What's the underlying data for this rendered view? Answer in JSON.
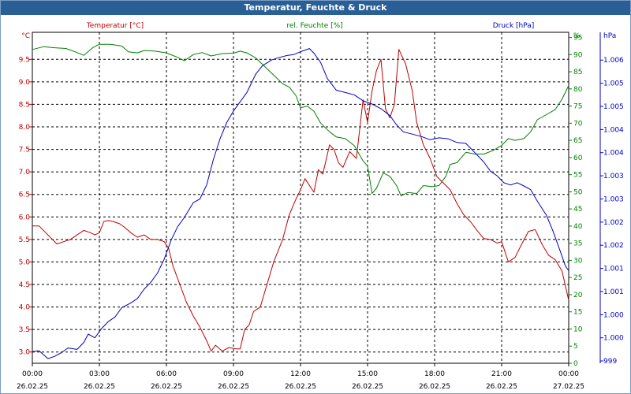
{
  "window": {
    "title": "Temperatur, Feuchte & Druck"
  },
  "colors": {
    "temperature": "#c00000",
    "humidity": "#008000",
    "pressure": "#0000c0",
    "title_bg": "#2a5f96",
    "grid": "#000000"
  },
  "chart_data": {
    "type": "line",
    "title": "Temperatur, Feuchte & Druck",
    "grid": true,
    "x_ticks": [
      {
        "hours": 0,
        "time": "00:00",
        "date": "26.02.25"
      },
      {
        "hours": 3,
        "time": "03:00",
        "date": "26.02.25"
      },
      {
        "hours": 6,
        "time": "06:00",
        "date": "26.02.25"
      },
      {
        "hours": 9,
        "time": "09:00",
        "date": "26.02.25"
      },
      {
        "hours": 12,
        "time": "12:00",
        "date": "26.02.25"
      },
      {
        "hours": 15,
        "time": "15:00",
        "date": "26.02.25"
      },
      {
        "hours": 18,
        "time": "18:00",
        "date": "26.02.25"
      },
      {
        "hours": 21,
        "time": "21:00",
        "date": "26.02.25"
      },
      {
        "hours": 24,
        "time": "00:00",
        "date": "27.02.25"
      }
    ],
    "x_range_hours": [
      0,
      24
    ],
    "axes": {
      "temperature": {
        "label": "Temperatur [°C]",
        "unit": "°C",
        "range": [
          2.75,
          10.1
        ],
        "ticks": [
          3.0,
          3.5,
          4.0,
          4.5,
          5.0,
          5.5,
          6.0,
          6.5,
          7.0,
          7.5,
          8.0,
          8.5,
          9.0,
          9.5
        ],
        "tick_labels": [
          "3.0",
          "3.5",
          "4.0",
          "4.5",
          "5.0",
          "5.5",
          "6.0",
          "6.5",
          "7.0",
          "7.5",
          "8.0",
          "8.5",
          "9.0",
          "9.5"
        ]
      },
      "humidity": {
        "label": "rel. Feuchte [%]",
        "unit": "%",
        "range": [
          0,
          96.5
        ],
        "ticks": [
          0,
          5,
          10,
          15,
          20,
          25,
          30,
          35,
          40,
          45,
          50,
          55,
          60,
          65,
          70,
          75,
          80,
          85,
          90,
          95
        ],
        "tick_labels": [
          "0",
          "5",
          "10",
          "15",
          "20",
          "25",
          "30",
          "35",
          "40",
          "45",
          "50",
          "55",
          "60",
          "65",
          "70",
          "75",
          "80",
          "85",
          "90",
          "95"
        ]
      },
      "pressure": {
        "label": "Druck [hPa]",
        "unit": "hPa",
        "range": [
          998.95,
          1006.1
        ],
        "ticks": [
          999.0,
          999.5,
          1000.0,
          1000.5,
          1001.0,
          1001.5,
          1002.0,
          1002.5,
          1003.0,
          1003.5,
          1004.0,
          1004.5,
          1005.0,
          1005.5
        ],
        "tick_labels": [
          "999",
          "1.000",
          "1.000",
          "1.001",
          "1.001",
          "1.002",
          "1.002",
          "1.003",
          "1.003",
          "1.004",
          "1.004",
          "1.005",
          "1.005",
          "1.006"
        ]
      }
    },
    "series": [
      {
        "name": "Temperatur [°C]",
        "axis": "temperature",
        "points": [
          [
            0,
            5.8
          ],
          [
            0.3,
            5.8
          ],
          [
            0.6,
            5.65
          ],
          [
            0.9,
            5.5
          ],
          [
            1.1,
            5.4
          ],
          [
            1.4,
            5.45
          ],
          [
            1.7,
            5.5
          ],
          [
            2,
            5.6
          ],
          [
            2.3,
            5.7
          ],
          [
            2.6,
            5.65
          ],
          [
            2.8,
            5.6
          ],
          [
            3.0,
            5.65
          ],
          [
            3.2,
            5.9
          ],
          [
            3.4,
            5.92
          ],
          [
            3.6,
            5.9
          ],
          [
            3.9,
            5.85
          ],
          [
            4.1,
            5.78
          ],
          [
            4.4,
            5.65
          ],
          [
            4.7,
            5.55
          ],
          [
            5.0,
            5.6
          ],
          [
            5.3,
            5.5
          ],
          [
            5.6,
            5.5
          ],
          [
            5.9,
            5.45
          ],
          [
            6.1,
            5.3
          ],
          [
            6.3,
            4.9
          ],
          [
            6.6,
            4.5
          ],
          [
            6.9,
            4.1
          ],
          [
            7.2,
            3.8
          ],
          [
            7.5,
            3.55
          ],
          [
            7.8,
            3.25
          ],
          [
            8.0,
            3.02
          ],
          [
            8.2,
            3.15
          ],
          [
            8.5,
            3.02
          ],
          [
            8.8,
            3.1
          ],
          [
            9.1,
            3.07
          ],
          [
            9.3,
            3.07
          ],
          [
            9.5,
            3.5
          ],
          [
            9.7,
            3.6
          ],
          [
            9.9,
            3.9
          ],
          [
            10.2,
            4.0
          ],
          [
            10.5,
            4.5
          ],
          [
            10.8,
            5.0
          ],
          [
            11.2,
            5.5
          ],
          [
            11.5,
            6.05
          ],
          [
            11.8,
            6.4
          ],
          [
            12.0,
            6.6
          ],
          [
            12.2,
            6.85
          ],
          [
            12.4,
            6.7
          ],
          [
            12.6,
            6.55
          ],
          [
            12.8,
            7.05
          ],
          [
            13.0,
            6.95
          ],
          [
            13.3,
            7.6
          ],
          [
            13.5,
            7.5
          ],
          [
            13.7,
            7.2
          ],
          [
            13.9,
            7.1
          ],
          [
            14.2,
            7.45
          ],
          [
            14.5,
            7.3
          ],
          [
            14.8,
            8.6
          ],
          [
            15.0,
            8.1
          ],
          [
            15.2,
            8.8
          ],
          [
            15.4,
            9.25
          ],
          [
            15.6,
            9.5
          ],
          [
            15.8,
            8.4
          ],
          [
            16.0,
            8.2
          ],
          [
            16.2,
            8.5
          ],
          [
            16.4,
            9.72
          ],
          [
            16.7,
            9.4
          ],
          [
            17.0,
            8.8
          ],
          [
            17.2,
            8.1
          ],
          [
            17.5,
            7.6
          ],
          [
            17.8,
            7.3
          ],
          [
            18.1,
            6.9
          ],
          [
            18.4,
            6.75
          ],
          [
            18.7,
            6.6
          ],
          [
            19.0,
            6.3
          ],
          [
            19.3,
            6.05
          ],
          [
            19.6,
            5.9
          ],
          [
            19.9,
            5.7
          ],
          [
            20.2,
            5.52
          ],
          [
            20.5,
            5.5
          ],
          [
            20.8,
            5.42
          ],
          [
            21.0,
            5.45
          ],
          [
            21.3,
            5.0
          ],
          [
            21.6,
            5.1
          ],
          [
            21.9,
            5.4
          ],
          [
            22.2,
            5.68
          ],
          [
            22.5,
            5.72
          ],
          [
            22.8,
            5.4
          ],
          [
            23.1,
            5.15
          ],
          [
            23.4,
            5.05
          ],
          [
            23.7,
            4.8
          ],
          [
            24.0,
            4.15
          ]
        ]
      },
      {
        "name": "rel. Feuchte [%]",
        "axis": "humidity",
        "points": [
          [
            0,
            91.5
          ],
          [
            0.5,
            92.3
          ],
          [
            1.0,
            92.0
          ],
          [
            1.5,
            91.8
          ],
          [
            2.0,
            90.6
          ],
          [
            2.3,
            89.8
          ],
          [
            2.7,
            92.0
          ],
          [
            3.0,
            93.0
          ],
          [
            3.5,
            93.0
          ],
          [
            4.0,
            92.5
          ],
          [
            4.3,
            90.8
          ],
          [
            4.7,
            90.5
          ],
          [
            5.0,
            91.2
          ],
          [
            5.5,
            91.0
          ],
          [
            6.0,
            90.5
          ],
          [
            6.5,
            89.2
          ],
          [
            6.8,
            88.2
          ],
          [
            7.2,
            90.0
          ],
          [
            7.6,
            90.6
          ],
          [
            8.0,
            89.6
          ],
          [
            8.5,
            90.3
          ],
          [
            9.0,
            90.4
          ],
          [
            9.3,
            91.0
          ],
          [
            9.6,
            90.5
          ],
          [
            10.0,
            89.0
          ],
          [
            10.4,
            86.5
          ],
          [
            10.8,
            84.0
          ],
          [
            11.2,
            81.5
          ],
          [
            11.5,
            80.5
          ],
          [
            11.8,
            78.0
          ],
          [
            12.0,
            74.5
          ],
          [
            12.3,
            75.0
          ],
          [
            12.6,
            73.5
          ],
          [
            12.9,
            70.0
          ],
          [
            13.3,
            67.5
          ],
          [
            13.6,
            66.0
          ],
          [
            14.0,
            65.5
          ],
          [
            14.4,
            63.5
          ],
          [
            14.8,
            59.0
          ],
          [
            15.0,
            57.5
          ],
          [
            15.2,
            49.5
          ],
          [
            15.4,
            51.0
          ],
          [
            15.7,
            55.5
          ],
          [
            16.0,
            54.5
          ],
          [
            16.3,
            51.8
          ],
          [
            16.5,
            48.8
          ],
          [
            16.8,
            49.8
          ],
          [
            17.2,
            49.5
          ],
          [
            17.5,
            51.8
          ],
          [
            17.9,
            51.5
          ],
          [
            18.2,
            51.8
          ],
          [
            18.5,
            54.5
          ],
          [
            18.7,
            58.0
          ],
          [
            19.0,
            58.5
          ],
          [
            19.4,
            61.5
          ],
          [
            19.8,
            61.0
          ],
          [
            20.2,
            61.0
          ],
          [
            20.6,
            62.0
          ],
          [
            21.0,
            63.5
          ],
          [
            21.3,
            65.5
          ],
          [
            21.6,
            65.0
          ],
          [
            22.0,
            65.5
          ],
          [
            22.3,
            67.5
          ],
          [
            22.6,
            71.0
          ],
          [
            23.0,
            72.5
          ],
          [
            23.4,
            74.0
          ],
          [
            23.7,
            77.0
          ],
          [
            24.0,
            81.0
          ]
        ]
      },
      {
        "name": "Druck [hPa]",
        "axis": "pressure",
        "points": [
          [
            0,
            999.2
          ],
          [
            0.3,
            999.22
          ],
          [
            0.7,
            999.05
          ],
          [
            1.0,
            999.1
          ],
          [
            1.3,
            999.18
          ],
          [
            1.6,
            999.28
          ],
          [
            2.0,
            999.25
          ],
          [
            2.3,
            999.4
          ],
          [
            2.5,
            999.58
          ],
          [
            2.8,
            999.5
          ],
          [
            3.1,
            999.7
          ],
          [
            3.4,
            999.85
          ],
          [
            3.7,
            999.95
          ],
          [
            4.0,
            1000.15
          ],
          [
            4.4,
            1000.25
          ],
          [
            4.7,
            1000.35
          ],
          [
            5.0,
            1000.55
          ],
          [
            5.3,
            1000.7
          ],
          [
            5.6,
            1000.9
          ],
          [
            5.9,
            1001.2
          ],
          [
            6.2,
            1001.6
          ],
          [
            6.5,
            1001.9
          ],
          [
            6.8,
            1002.1
          ],
          [
            7.2,
            1002.42
          ],
          [
            7.5,
            1002.5
          ],
          [
            7.8,
            1002.8
          ],
          [
            8.1,
            1003.35
          ],
          [
            8.4,
            1003.8
          ],
          [
            8.7,
            1004.15
          ],
          [
            9.0,
            1004.4
          ],
          [
            9.3,
            1004.6
          ],
          [
            9.6,
            1004.8
          ],
          [
            10.0,
            1005.2
          ],
          [
            10.3,
            1005.38
          ],
          [
            10.7,
            1005.5
          ],
          [
            11.0,
            1005.55
          ],
          [
            11.4,
            1005.6
          ],
          [
            11.7,
            1005.62
          ],
          [
            12.0,
            1005.68
          ],
          [
            12.4,
            1005.75
          ],
          [
            12.6,
            1005.65
          ],
          [
            12.9,
            1005.45
          ],
          [
            13.2,
            1005.1
          ],
          [
            13.6,
            1004.85
          ],
          [
            14.0,
            1004.8
          ],
          [
            14.4,
            1004.75
          ],
          [
            14.8,
            1004.62
          ],
          [
            15.2,
            1004.55
          ],
          [
            15.6,
            1004.45
          ],
          [
            16.0,
            1004.3
          ],
          [
            16.3,
            1004.1
          ],
          [
            16.6,
            1003.95
          ],
          [
            17.0,
            1003.9
          ],
          [
            17.4,
            1003.85
          ],
          [
            17.8,
            1003.78
          ],
          [
            18.2,
            1003.82
          ],
          [
            18.6,
            1003.8
          ],
          [
            19.0,
            1003.72
          ],
          [
            19.4,
            1003.7
          ],
          [
            19.8,
            1003.5
          ],
          [
            20.2,
            1003.3
          ],
          [
            20.5,
            1003.1
          ],
          [
            20.8,
            1003.0
          ],
          [
            21.1,
            1002.85
          ],
          [
            21.4,
            1002.8
          ],
          [
            21.7,
            1002.85
          ],
          [
            22.0,
            1002.78
          ],
          [
            22.3,
            1002.7
          ],
          [
            22.6,
            1002.45
          ],
          [
            23.0,
            1002.15
          ],
          [
            23.3,
            1001.8
          ],
          [
            23.6,
            1001.4
          ],
          [
            23.85,
            1001.05
          ],
          [
            24.0,
            1000.95
          ]
        ]
      }
    ]
  }
}
